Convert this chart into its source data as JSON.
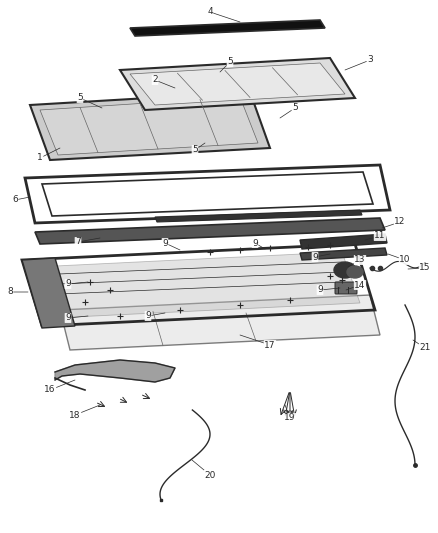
{
  "background_color": "#ffffff",
  "line_color": "#2a2a2a",
  "figsize": [
    4.38,
    5.33
  ],
  "dpi": 100,
  "label_fontsize": 6.5
}
